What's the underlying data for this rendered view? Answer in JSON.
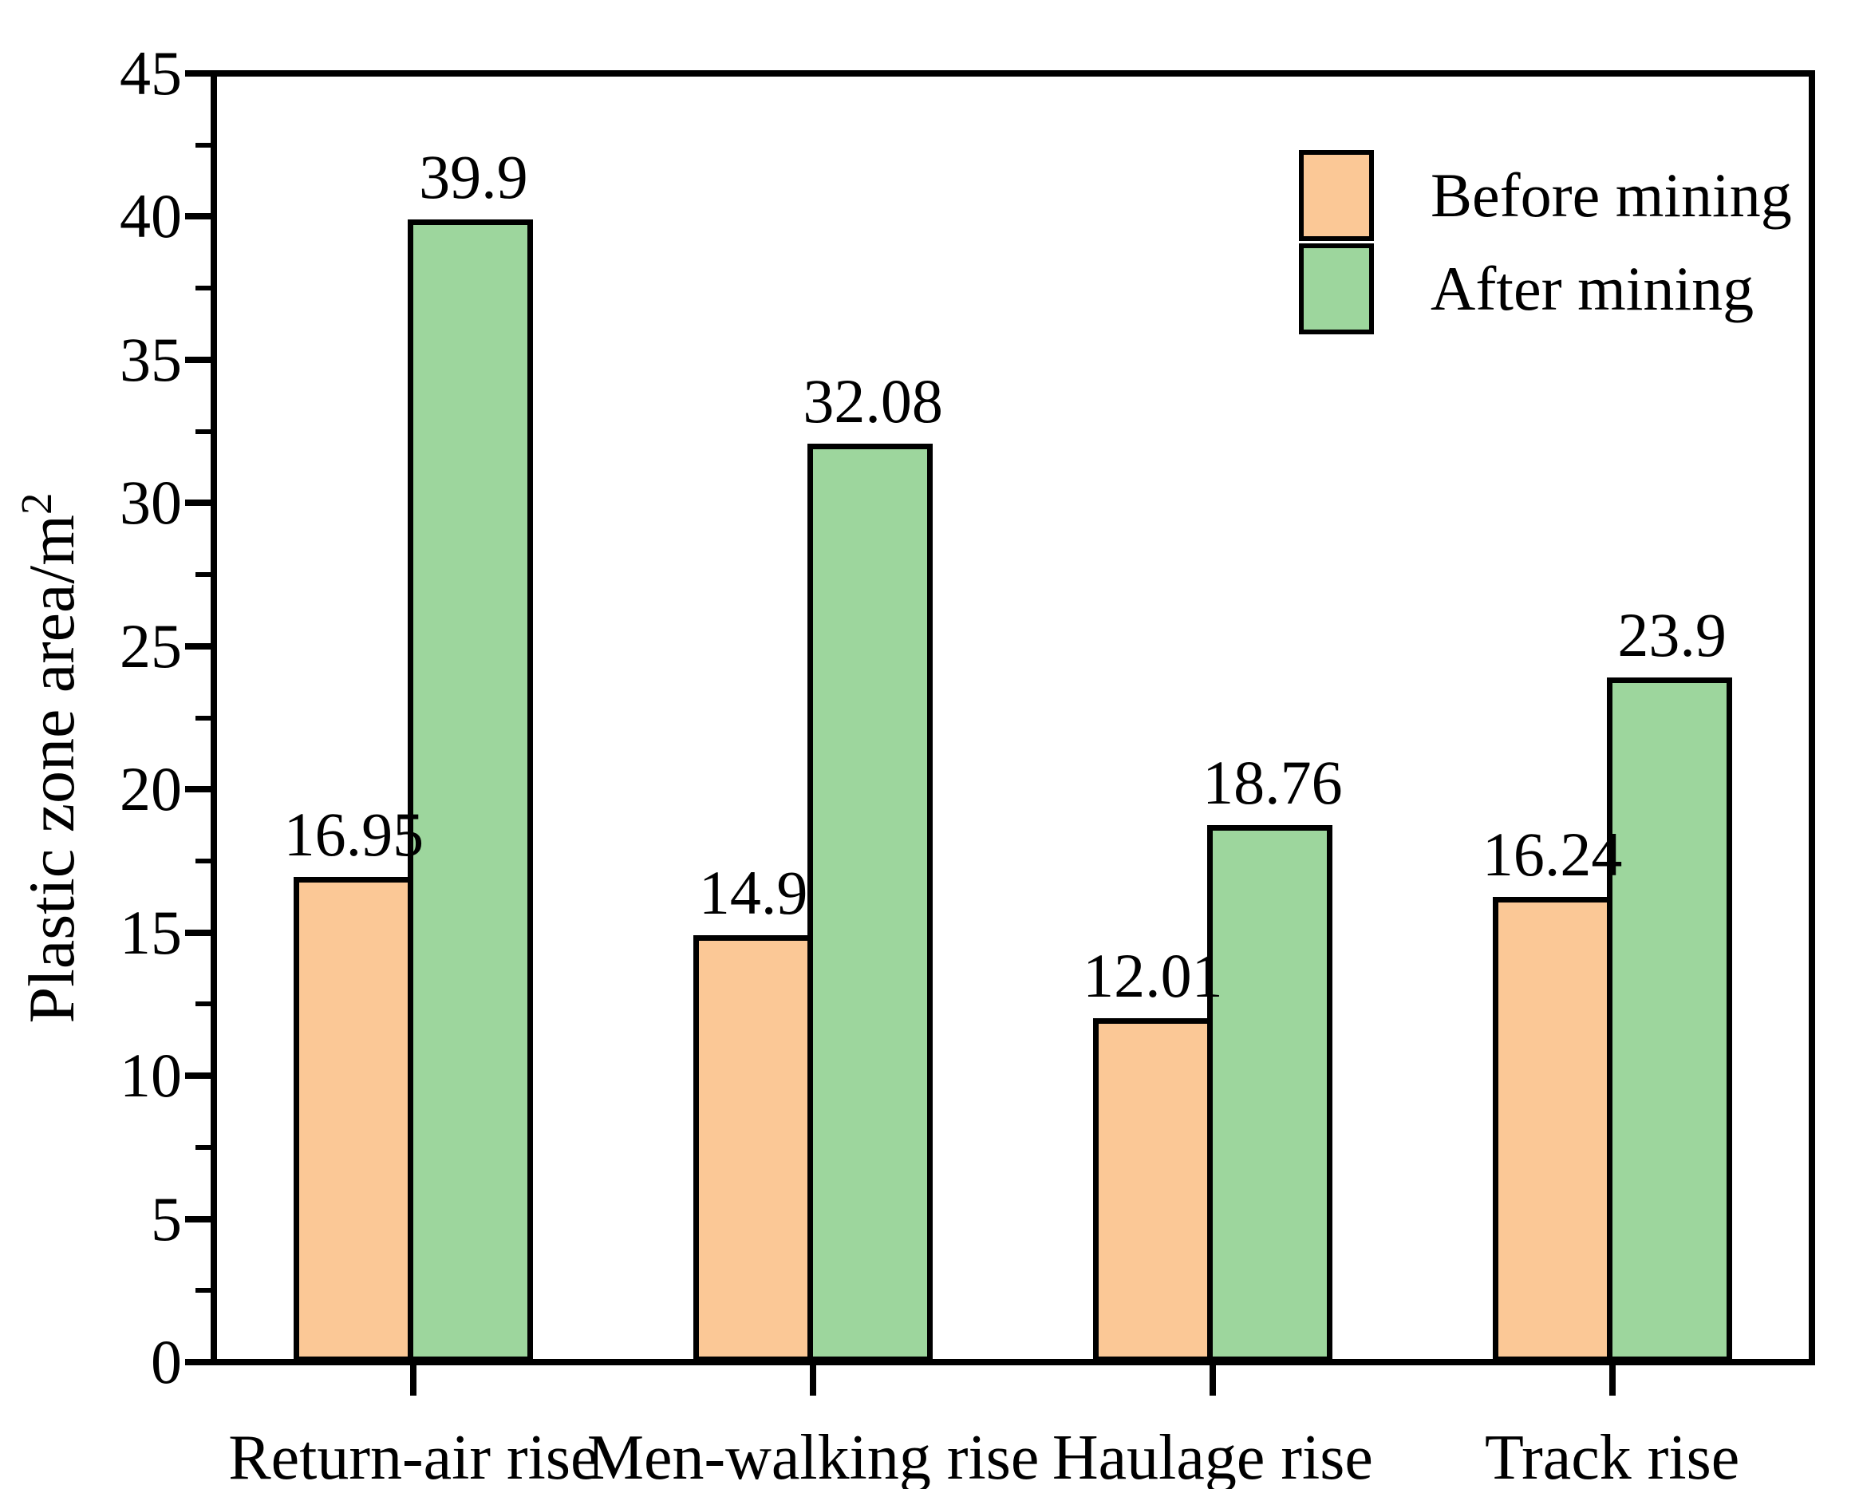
{
  "figure": {
    "background": "#ffffff",
    "text_color": "#000000",
    "axis_color": "#000000"
  },
  "chart_data": {
    "type": "bar",
    "title": "",
    "xlabel": "",
    "ylabel": {
      "text": "Plastic zone area/m",
      "sup": "2"
    },
    "categories": [
      "Return-air rise",
      "Men-walking rise",
      "Haulage rise",
      "Track rise"
    ],
    "series": [
      {
        "name": "Before mining",
        "color": "#FBC896",
        "values": [
          16.95,
          14.9,
          12.01,
          16.24
        ]
      },
      {
        "name": "After mining",
        "color": "#9DD69D",
        "values": [
          39.9,
          32.08,
          18.76,
          23.9
        ]
      }
    ],
    "value_labels_shown": true,
    "bar_outline_color": "#000000",
    "ylim": [
      0,
      45
    ],
    "y_major_step": 5,
    "y_minor_step": 2.5,
    "y_tick_labels": [
      "0",
      "5",
      "10",
      "15",
      "20",
      "25",
      "30",
      "35",
      "40",
      "45"
    ],
    "grid": false,
    "legend": {
      "position": "top-right-inside",
      "items": [
        "Before mining",
        "After mining"
      ]
    }
  }
}
